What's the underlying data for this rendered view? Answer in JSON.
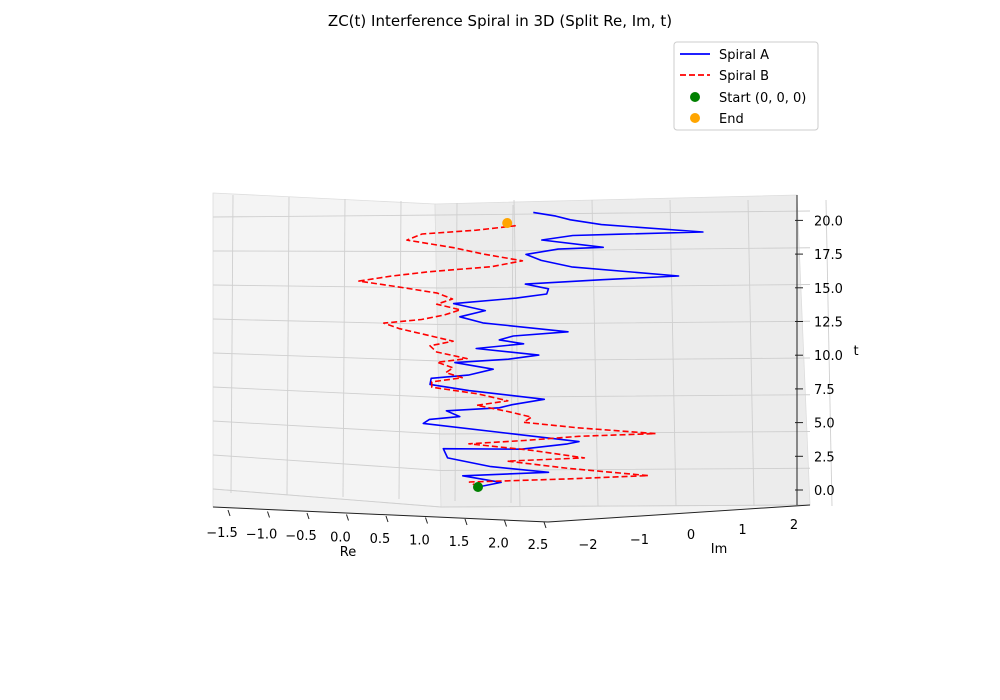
{
  "chart_data": {
    "type": "line",
    "projection": "3d",
    "title": "ZC(t) Interference Spiral in 3D (Split Re, Im, t)",
    "xlabel": "Re",
    "ylabel": "Im",
    "zlabel": "t",
    "xlim": [
      -1.5,
      2.5
    ],
    "ylim": [
      -2.5,
      2.0
    ],
    "zlim": [
      -0.5,
      21
    ],
    "x_ticks": [
      "−1.5",
      "−1.0",
      "−0.5",
      "0.0",
      "0.5",
      "1.0",
      "1.5",
      "2.0",
      "2.5"
    ],
    "y_ticks": [
      "−2",
      "−1",
      "0",
      "1",
      "2"
    ],
    "z_ticks": [
      "0.0",
      "2.5",
      "5.0",
      "7.5",
      "10.0",
      "12.5",
      "15.0",
      "17.5",
      "20.0"
    ],
    "grid": true,
    "legend_position": "top-right",
    "colors": {
      "spiral_a": "#0000ff",
      "spiral_b": "#ff0000",
      "start": "#008000",
      "end": "#ffa500"
    },
    "series": [
      {
        "name": "Spiral A",
        "style": "solid",
        "points": [
          [
            0,
            0,
            0
          ],
          [
            0.3,
            0.2,
            0.4
          ],
          [
            -0.2,
            -0.1,
            0.8
          ],
          [
            0.9,
            0.8,
            1.2
          ],
          [
            0.2,
            -0.3,
            1.7
          ],
          [
            -0.4,
            -0.2,
            2.1
          ],
          [
            -0.5,
            0.3,
            2.6
          ],
          [
            0.6,
            -0.1,
            3.1
          ],
          [
            1.2,
            0.3,
            3.6
          ],
          [
            1.4,
            -0.2,
            4.0
          ],
          [
            0.4,
            -0.3,
            4.3
          ],
          [
            -0.7,
            -0.6,
            4.7
          ],
          [
            -0.6,
            -0.8,
            5.1
          ],
          [
            -0.2,
            -0.6,
            5.4
          ],
          [
            -0.4,
            -0.4,
            5.7
          ],
          [
            0.3,
            -0.1,
            6.1
          ],
          [
            0.5,
            -0.4,
            6.5
          ],
          [
            0.9,
            0.1,
            6.9
          ],
          [
            -0.1,
            -0.3,
            7.3
          ],
          [
            -0.6,
            -0.7,
            7.7
          ],
          [
            -0.6,
            -0.5,
            8.1
          ],
          [
            -0.1,
            -0.4,
            8.5
          ],
          [
            0.2,
            0.1,
            8.9
          ],
          [
            -0.3,
            -0.2,
            9.3
          ],
          [
            0.4,
            0.2,
            9.7
          ],
          [
            0.8,
            0.4,
            10.1
          ],
          [
            0.0,
            -0.3,
            10.5
          ],
          [
            0.6,
            0.3,
            10.9
          ],
          [
            0.3,
            -0.1,
            11.2
          ],
          [
            0.5,
            -0.2,
            11.6
          ],
          [
            1.2,
            0.4,
            12.0
          ],
          [
            0.1,
            -0.4,
            12.5
          ],
          [
            -0.2,
            -0.6,
            12.9
          ],
          [
            0.1,
            0.0,
            13.3
          ],
          [
            -0.3,
            -0.4,
            13.8
          ],
          [
            0.5,
            0.3,
            14.3
          ],
          [
            0.9,
            0.5,
            14.7
          ],
          [
            0.9,
            0.8,
            15.0
          ],
          [
            0.6,
            0.6,
            15.3
          ],
          [
            1.6,
            1.3,
            15.8
          ],
          [
            2.6,
            1.8,
            16.3
          ],
          [
            1.2,
            1.0,
            16.7
          ],
          [
            0.8,
            0.8,
            17.1
          ],
          [
            0.6,
            0.7,
            17.5
          ],
          [
            1.0,
            1.2,
            17.9
          ],
          [
            1.6,
            1.4,
            18.2
          ],
          [
            0.8,
            0.9,
            18.6
          ],
          [
            1.2,
            1.2,
            19.0
          ],
          [
            1.8,
            1.6,
            19.2
          ],
          [
            2.9,
            2.2,
            19.6
          ],
          [
            1.6,
            1.1,
            20.0
          ],
          [
            1.2,
            0.8,
            20.3
          ],
          [
            1.0,
            0.8,
            20.5
          ],
          [
            0.7,
            0.7,
            20.7
          ]
        ]
      },
      {
        "name": "Spiral B",
        "style": "dashed",
        "points": [
          [
            0,
            0,
            0
          ],
          [
            -0.1,
            -0.2,
            0.4
          ],
          [
            1.1,
            0.7,
            0.8
          ],
          [
            2.2,
            1.6,
            1.2
          ],
          [
            1.2,
            0.5,
            1.7
          ],
          [
            0.4,
            0.0,
            2.1
          ],
          [
            1.4,
            0.7,
            2.5
          ],
          [
            0.7,
            0.4,
            2.9
          ],
          [
            -0.1,
            -0.3,
            3.3
          ],
          [
            0.6,
            0.4,
            3.6
          ],
          [
            1.3,
            1.0,
            4.0
          ],
          [
            2.3,
            1.6,
            4.4
          ],
          [
            1.3,
            0.8,
            4.7
          ],
          [
            0.6,
            0.3,
            5.0
          ],
          [
            0.7,
            0.4,
            5.4
          ],
          [
            0.4,
            0.1,
            5.8
          ],
          [
            0.0,
            -0.2,
            6.2
          ],
          [
            0.4,
            0.1,
            6.6
          ],
          [
            0.0,
            0.0,
            7.0
          ],
          [
            -0.6,
            -0.4,
            7.4
          ],
          [
            -0.6,
            -0.4,
            7.8
          ],
          [
            -0.2,
            -0.2,
            8.2
          ],
          [
            -0.4,
            -0.5,
            8.6
          ],
          [
            -0.3,
            -0.5,
            9.0
          ],
          [
            -0.5,
            -0.7,
            9.4
          ],
          [
            -0.1,
            -0.6,
            9.8
          ],
          [
            -0.5,
            -0.8,
            10.2
          ],
          [
            -0.6,
            -0.7,
            10.6
          ],
          [
            -0.3,
            -0.5,
            11.0
          ],
          [
            -0.6,
            -0.8,
            11.4
          ],
          [
            -1.0,
            -0.9,
            11.8
          ],
          [
            -1.2,
            -1.1,
            12.2
          ],
          [
            -0.7,
            -0.9,
            12.6
          ],
          [
            -0.4,
            -0.7,
            13.0
          ],
          [
            -0.2,
            -0.5,
            13.4
          ],
          [
            -0.5,
            -0.8,
            13.8
          ],
          [
            -0.3,
            -0.6,
            14.2
          ],
          [
            -0.5,
            -0.7,
            14.6
          ],
          [
            -1.0,
            -1.1,
            15.0
          ],
          [
            -1.5,
            -1.6,
            15.4
          ],
          [
            -1.1,
            -1.2,
            15.8
          ],
          [
            -0.6,
            -0.8,
            16.2
          ],
          [
            0.2,
            -0.2,
            16.7
          ],
          [
            0.6,
            0.1,
            17.2
          ],
          [
            0.1,
            -0.2,
            17.6
          ],
          [
            -0.3,
            -0.4,
            18.0
          ],
          [
            -0.9,
            -0.9,
            18.5
          ],
          [
            -0.7,
            -0.8,
            19.0
          ],
          [
            0.0,
            -0.3,
            19.4
          ],
          [
            0.5,
            0.1,
            19.8
          ],
          [
            0.4,
            0.0,
            20.0
          ]
        ]
      }
    ],
    "markers": [
      {
        "name": "Start (0, 0, 0)",
        "point": [
          0,
          0,
          0
        ],
        "color": "#008000"
      },
      {
        "name": "End",
        "point": [
          0.4,
          0.0,
          20.0
        ],
        "color": "#ffa500"
      }
    ],
    "legend": [
      "Spiral A",
      "Spiral B",
      "Start (0, 0, 0)",
      "End"
    ]
  }
}
